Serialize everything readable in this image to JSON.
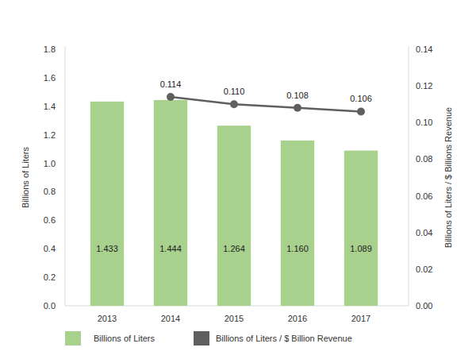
{
  "chart_data": {
    "type": "bar",
    "y_label": "Billions of Liters",
    "y2_label": "Billions of Liters / $ Billions Revenue",
    "categories": [
      "2013",
      "2014",
      "2015",
      "2016",
      "2017"
    ],
    "series": [
      {
        "name": "Billions of Liters",
        "type": "bar",
        "color": "#a9d18e",
        "values": [
          1.433,
          1.444,
          1.264,
          1.16,
          1.089
        ],
        "value_labels": [
          "1.433",
          "1.444",
          "1.264",
          "1.160",
          "1.089"
        ]
      },
      {
        "name": "Billions of Liters / $ Billion Revenue",
        "type": "line",
        "axis": "y2",
        "color": "#5f5f5f",
        "marker": "circle",
        "values": [
          null,
          0.114,
          0.11,
          0.108,
          0.106
        ],
        "value_labels": [
          null,
          "0.114",
          "0.110",
          "0.108",
          "0.106"
        ]
      }
    ],
    "ylim": [
      0,
      1.8
    ],
    "yticks": [
      {
        "value": 0,
        "label": "0.0"
      },
      {
        "value": 0.2,
        "label": "0.2"
      },
      {
        "value": 0.4,
        "label": "0.4"
      },
      {
        "value": 0.6,
        "label": "0.6"
      },
      {
        "value": 0.8,
        "label": "0.8"
      },
      {
        "value": 1,
        "label": "1.0"
      },
      {
        "value": 1.2,
        "label": "1.2"
      },
      {
        "value": 1.4,
        "label": "1.4"
      },
      {
        "value": 1.6,
        "label": "1.6"
      },
      {
        "value": 1.8,
        "label": "1.8"
      }
    ],
    "y2lim": [
      0,
      0.14
    ],
    "y2ticks": [
      {
        "value": 0,
        "label": "0.00"
      },
      {
        "value": 0.02,
        "label": "0.02"
      },
      {
        "value": 0.04,
        "label": "0.04"
      },
      {
        "value": 0.06,
        "label": "0.06"
      },
      {
        "value": 0.08,
        "label": "0.08"
      },
      {
        "value": 0.1,
        "label": "0.10"
      },
      {
        "value": 0.12,
        "label": "0.12"
      },
      {
        "value": 0.14,
        "label": "0.14"
      }
    ],
    "grid": false,
    "data_labels": true,
    "legend": "bottom"
  }
}
